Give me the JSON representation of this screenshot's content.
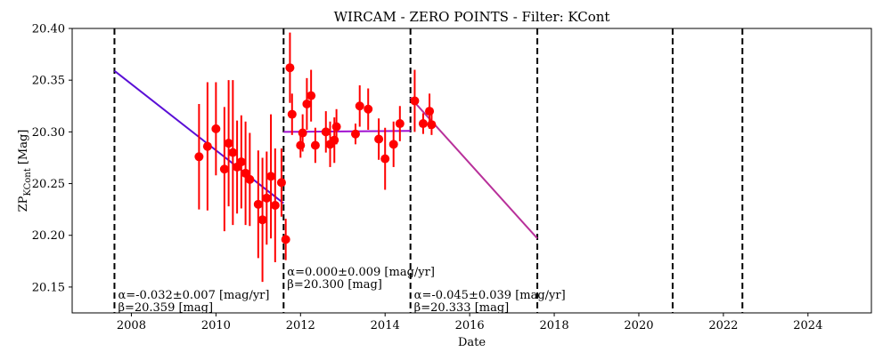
{
  "chart_data": {
    "type": "scatter",
    "title": "WIRCAM - ZERO POINTS - Filter: KCont",
    "xlabel": "Date",
    "ylabel_main": "ZP",
    "ylabel_sub": "KCont",
    "ylabel_unit": " [Mag]",
    "xlim": [
      2006.6,
      2025.5
    ],
    "ylim": [
      20.125,
      20.4
    ],
    "xticks": [
      "2008",
      "2010",
      "2012",
      "2014",
      "2016",
      "2018",
      "2020",
      "2022",
      "2024"
    ],
    "yticks": [
      "20.15",
      "20.20",
      "20.25",
      "20.30",
      "20.35",
      "20.40"
    ],
    "grid": false,
    "marker_color": "#ff0000",
    "errorbar_color": "#ff0000",
    "vlines": [
      2007.6,
      2011.6,
      2014.6,
      2017.6,
      2020.8,
      2022.45
    ],
    "points": [
      {
        "x": 2009.6,
        "y": 20.276,
        "err": 0.051
      },
      {
        "x": 2009.8,
        "y": 20.286,
        "err": 0.062
      },
      {
        "x": 2010.0,
        "y": 20.303,
        "err": 0.045
      },
      {
        "x": 2010.2,
        "y": 20.264,
        "err": 0.06
      },
      {
        "x": 2010.3,
        "y": 20.289,
        "err": 0.061
      },
      {
        "x": 2010.4,
        "y": 20.28,
        "err": 0.07
      },
      {
        "x": 2010.5,
        "y": 20.266,
        "err": 0.045
      },
      {
        "x": 2010.6,
        "y": 20.271,
        "err": 0.045
      },
      {
        "x": 2010.7,
        "y": 20.26,
        "err": 0.05
      },
      {
        "x": 2010.8,
        "y": 20.254,
        "err": 0.045
      },
      {
        "x": 2011.0,
        "y": 20.23,
        "err": 0.052
      },
      {
        "x": 2011.1,
        "y": 20.215,
        "err": 0.06
      },
      {
        "x": 2011.2,
        "y": 20.236,
        "err": 0.045
      },
      {
        "x": 2011.3,
        "y": 20.257,
        "err": 0.06
      },
      {
        "x": 2011.4,
        "y": 20.229,
        "err": 0.055
      },
      {
        "x": 2011.55,
        "y": 20.251,
        "err": 0.033
      },
      {
        "x": 2011.65,
        "y": 20.196,
        "err": 0.02
      },
      {
        "x": 2011.75,
        "y": 20.362,
        "err": 0.034
      },
      {
        "x": 2011.8,
        "y": 20.317,
        "err": 0.02
      },
      {
        "x": 2012.0,
        "y": 20.287,
        "err": 0.012
      },
      {
        "x": 2012.05,
        "y": 20.299,
        "err": 0.018
      },
      {
        "x": 2012.15,
        "y": 20.327,
        "err": 0.025
      },
      {
        "x": 2012.25,
        "y": 20.335,
        "err": 0.025
      },
      {
        "x": 2012.35,
        "y": 20.287,
        "err": 0.017
      },
      {
        "x": 2012.6,
        "y": 20.3,
        "err": 0.02
      },
      {
        "x": 2012.7,
        "y": 20.288,
        "err": 0.022
      },
      {
        "x": 2012.8,
        "y": 20.292,
        "err": 0.022
      },
      {
        "x": 2012.85,
        "y": 20.305,
        "err": 0.017
      },
      {
        "x": 2013.3,
        "y": 20.298,
        "err": 0.01
      },
      {
        "x": 2013.4,
        "y": 20.325,
        "err": 0.02
      },
      {
        "x": 2013.6,
        "y": 20.322,
        "err": 0.02
      },
      {
        "x": 2013.85,
        "y": 20.293,
        "err": 0.02
      },
      {
        "x": 2014.0,
        "y": 20.274,
        "err": 0.03
      },
      {
        "x": 2014.2,
        "y": 20.288,
        "err": 0.022
      },
      {
        "x": 2014.35,
        "y": 20.308,
        "err": 0.017
      },
      {
        "x": 2014.7,
        "y": 20.33,
        "err": 0.03
      },
      {
        "x": 2014.9,
        "y": 20.308,
        "err": 0.01
      },
      {
        "x": 2015.05,
        "y": 20.32,
        "err": 0.017
      },
      {
        "x": 2015.1,
        "y": 20.307,
        "err": 0.01
      }
    ],
    "fits": [
      {
        "x0": 2007.6,
        "x1": 2011.6,
        "y0": 20.359,
        "y1": 20.231,
        "color": "#5a0fd6",
        "alpha_text": "α=-0.032±0.007 [mag/yr]",
        "beta_text": "β=20.359 [mag]"
      },
      {
        "x0": 2011.6,
        "x1": 2014.6,
        "y0": 20.3,
        "y1": 20.301,
        "color": "#a010d0",
        "alpha_text": "α=0.000±0.009 [mag/yr]",
        "beta_text": "β=20.300 [mag]"
      },
      {
        "x0": 2014.6,
        "x1": 2017.6,
        "y0": 20.333,
        "y1": 20.197,
        "color": "#b8309a",
        "alpha_text": "α=-0.045±0.039 [mag/yr]",
        "beta_text": "β=20.333 [mag]"
      }
    ]
  }
}
